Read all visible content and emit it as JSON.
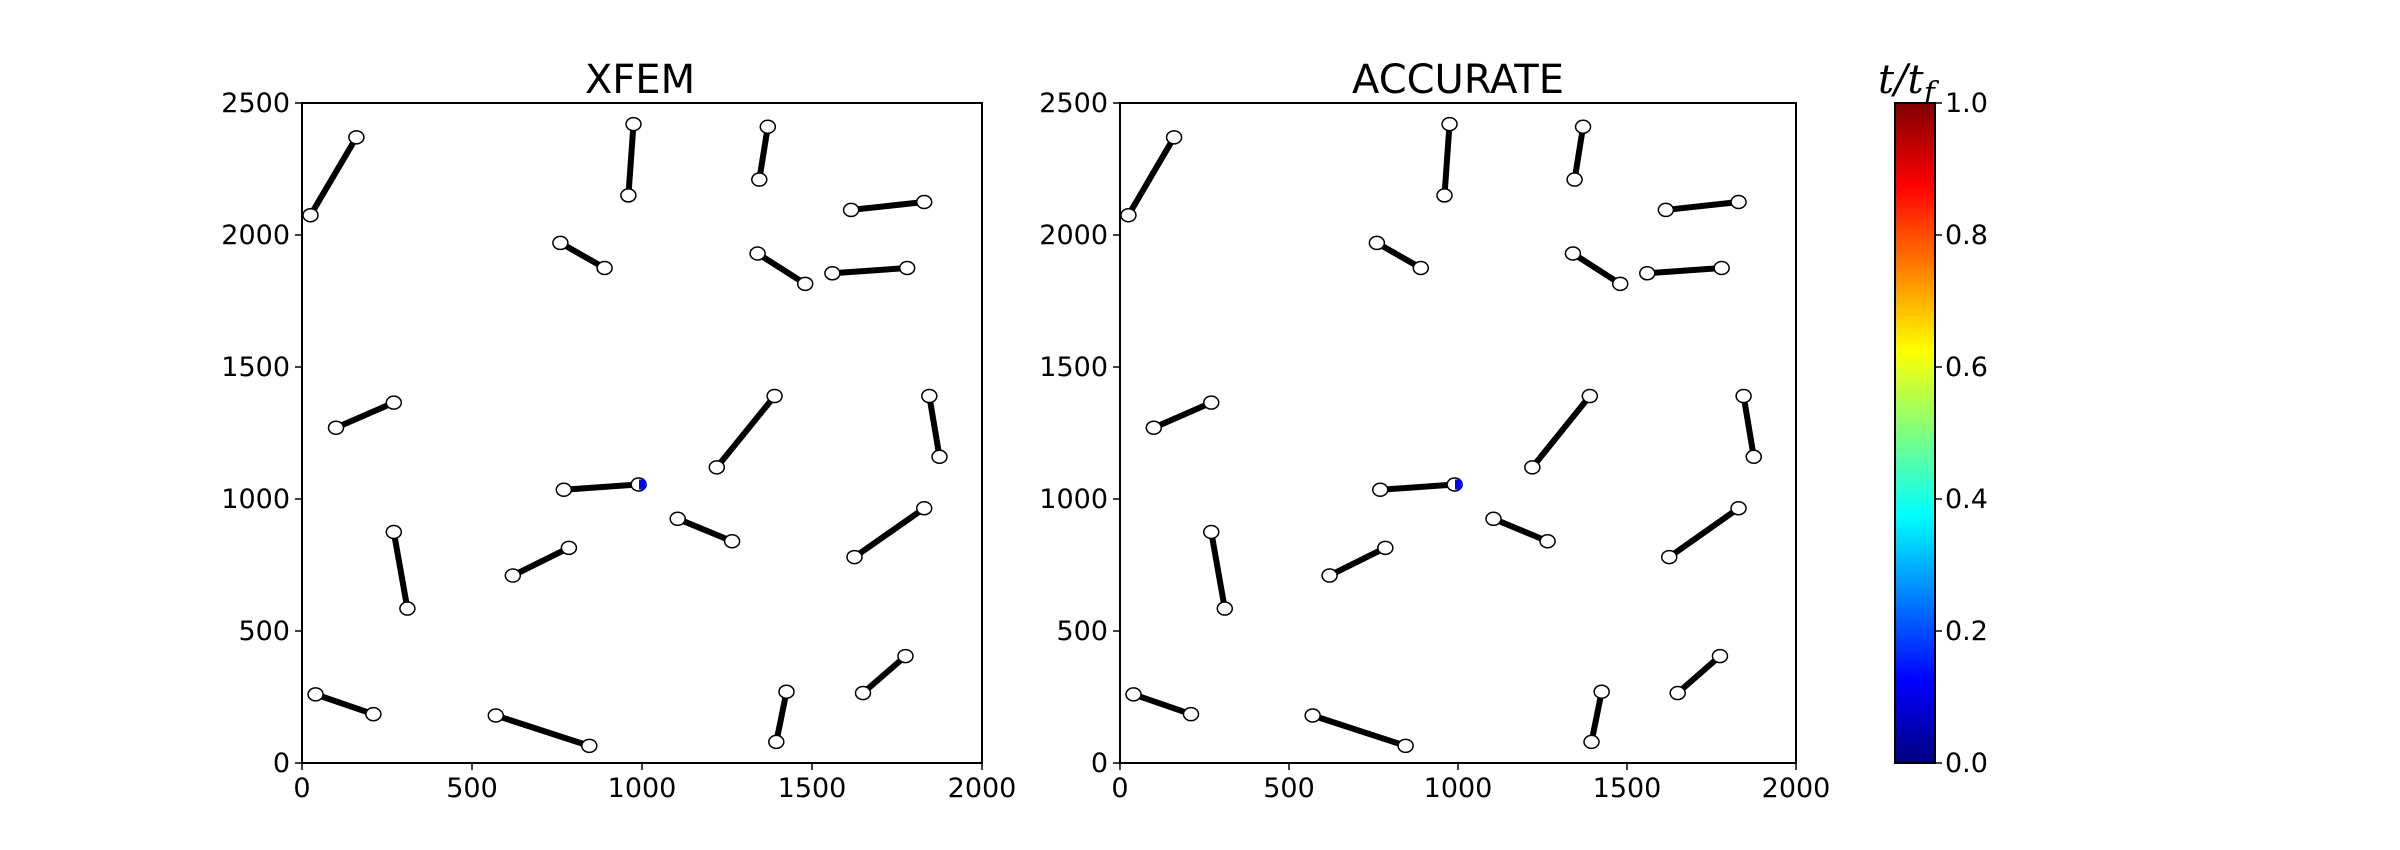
{
  "chart_data": [
    {
      "type": "scatter",
      "title": "XFEM",
      "xlim": [
        0,
        2000
      ],
      "ylim": [
        0,
        2500
      ],
      "xticks": [
        "0",
        "500",
        "1000",
        "1500",
        "2000"
      ],
      "yticks": [
        "0",
        "500",
        "1000",
        "1500",
        "2000",
        "2500"
      ],
      "segments": [
        [
          [
            25,
            2075
          ],
          [
            160,
            2370
          ]
        ],
        [
          [
            960,
            2150
          ],
          [
            975,
            2420
          ]
        ],
        [
          [
            1345,
            2210
          ],
          [
            1370,
            2410
          ]
        ],
        [
          [
            1615,
            2095
          ],
          [
            1830,
            2125
          ]
        ],
        [
          [
            760,
            1970
          ],
          [
            890,
            1875
          ]
        ],
        [
          [
            1340,
            1930
          ],
          [
            1480,
            1815
          ]
        ],
        [
          [
            1560,
            1855
          ],
          [
            1780,
            1875
          ]
        ],
        [
          [
            100,
            1270
          ],
          [
            270,
            1365
          ]
        ],
        [
          [
            1220,
            1120
          ],
          [
            1390,
            1390
          ]
        ],
        [
          [
            1845,
            1390
          ],
          [
            1875,
            1160
          ]
        ],
        [
          [
            770,
            1035
          ],
          [
            990,
            1055
          ]
        ],
        [
          [
            1105,
            925
          ],
          [
            1265,
            840
          ]
        ],
        [
          [
            1625,
            780
          ],
          [
            1830,
            965
          ]
        ],
        [
          [
            270,
            875
          ],
          [
            310,
            585
          ]
        ],
        [
          [
            620,
            710
          ],
          [
            785,
            815
          ]
        ],
        [
          [
            40,
            260
          ],
          [
            210,
            185
          ]
        ],
        [
          [
            570,
            180
          ],
          [
            845,
            65
          ]
        ],
        [
          [
            1395,
            80
          ],
          [
            1425,
            270
          ]
        ],
        [
          [
            1650,
            265
          ],
          [
            1775,
            405
          ]
        ]
      ],
      "growth_points": [
        [
          1000,
          1055
        ]
      ]
    },
    {
      "type": "scatter",
      "title": "ACCURATE",
      "xlim": [
        0,
        2000
      ],
      "ylim": [
        0,
        2500
      ],
      "xticks": [
        "0",
        "500",
        "1000",
        "1500",
        "2000"
      ],
      "yticks": [
        "0",
        "500",
        "1000",
        "1500",
        "2000",
        "2500"
      ],
      "segments": [
        [
          [
            25,
            2075
          ],
          [
            160,
            2370
          ]
        ],
        [
          [
            960,
            2150
          ],
          [
            975,
            2420
          ]
        ],
        [
          [
            1345,
            2210
          ],
          [
            1370,
            2410
          ]
        ],
        [
          [
            1615,
            2095
          ],
          [
            1830,
            2125
          ]
        ],
        [
          [
            760,
            1970
          ],
          [
            890,
            1875
          ]
        ],
        [
          [
            1340,
            1930
          ],
          [
            1480,
            1815
          ]
        ],
        [
          [
            1560,
            1855
          ],
          [
            1780,
            1875
          ]
        ],
        [
          [
            100,
            1270
          ],
          [
            270,
            1365
          ]
        ],
        [
          [
            1220,
            1120
          ],
          [
            1390,
            1390
          ]
        ],
        [
          [
            1845,
            1390
          ],
          [
            1875,
            1160
          ]
        ],
        [
          [
            770,
            1035
          ],
          [
            990,
            1055
          ]
        ],
        [
          [
            1105,
            925
          ],
          [
            1265,
            840
          ]
        ],
        [
          [
            1625,
            780
          ],
          [
            1830,
            965
          ]
        ],
        [
          [
            270,
            875
          ],
          [
            310,
            585
          ]
        ],
        [
          [
            620,
            710
          ],
          [
            785,
            815
          ]
        ],
        [
          [
            40,
            260
          ],
          [
            210,
            185
          ]
        ],
        [
          [
            570,
            180
          ],
          [
            845,
            65
          ]
        ],
        [
          [
            1395,
            80
          ],
          [
            1425,
            270
          ]
        ],
        [
          [
            1650,
            265
          ],
          [
            1775,
            405
          ]
        ]
      ],
      "growth_points": [
        [
          1000,
          1055
        ]
      ]
    }
  ],
  "colorbar": {
    "label": "t/t_f",
    "range": [
      0.0,
      1.0
    ],
    "ticks": [
      "0.0",
      "0.2",
      "0.4",
      "0.6",
      "0.8",
      "1.0"
    ],
    "colormap": "jet",
    "colors": [
      "#00007f",
      "#0000ff",
      "#007fff",
      "#00ffff",
      "#7fff7f",
      "#ffff00",
      "#ff7f00",
      "#ff0000",
      "#7f0000"
    ]
  }
}
